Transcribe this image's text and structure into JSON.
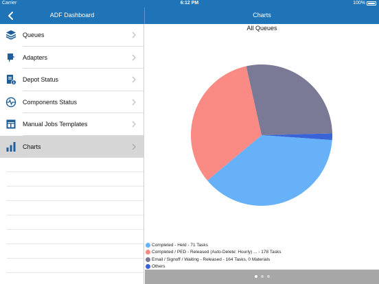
{
  "status_bar": {
    "carrier": "Carrier",
    "time": "6:12 PM",
    "battery": "100%"
  },
  "left_nav": {
    "title": "ADF Dashboard",
    "back_icon": "chevron-left-icon"
  },
  "right_nav": {
    "title": "Charts"
  },
  "sidebar": {
    "items": [
      {
        "label": "Queues",
        "icon": "layers-icon"
      },
      {
        "label": "Adapters",
        "icon": "plug-icon"
      },
      {
        "label": "Depot Status",
        "icon": "document-info-icon"
      },
      {
        "label": "Components Status",
        "icon": "pulse-icon"
      },
      {
        "label": "Manual Jobs Templates",
        "icon": "template-icon"
      },
      {
        "label": "Charts",
        "icon": "bar-chart-icon",
        "selected": true
      }
    ]
  },
  "colors": {
    "accent": "#1f73b7",
    "selected_row": "#d6d6d6"
  },
  "chart_data": {
    "type": "pie",
    "title": "All Queues",
    "slices": [
      {
        "label": "Completed - Held - 71 Tasks",
        "value": 37.8,
        "color": "#66b1f8"
      },
      {
        "label": "Completed / PED - Released (Auto-Delete: Hourly) ... - 178 Tasks",
        "value": 32.6,
        "color": "#fa8a84"
      },
      {
        "label": "Email / Signoff / Waiting - Released - 164 Tasks, 0 Materials",
        "value": 28.1,
        "color": "#7a7a96"
      },
      {
        "label": "Others",
        "value": 1.5,
        "color": "#3a63d8"
      }
    ]
  },
  "pager": {
    "pages": 3,
    "active": 0
  }
}
